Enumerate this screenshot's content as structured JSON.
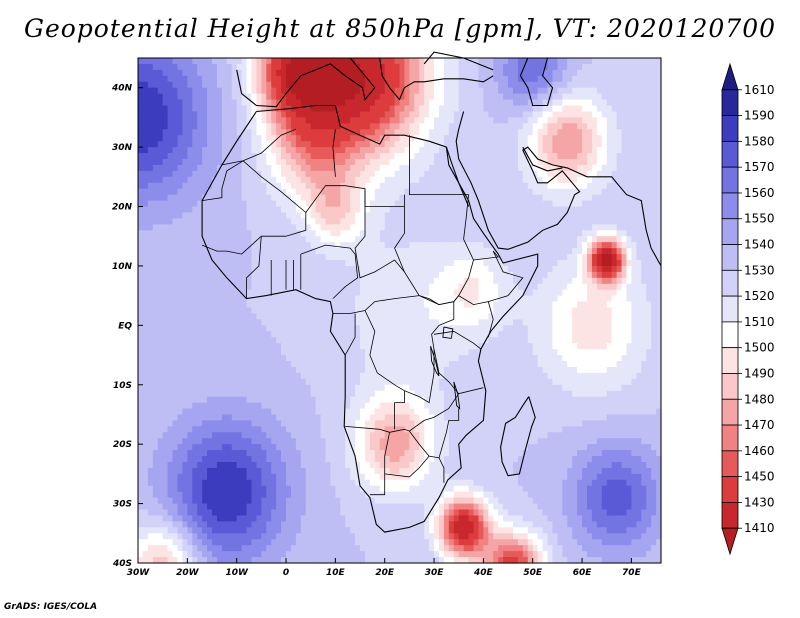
{
  "title": "Geopotential Height at 850hPa [gpm], VT: 2020120700",
  "credit": "GrADS: IGES/COLA",
  "map": {
    "variable": "Geopotential Height",
    "level": "850hPa",
    "units": "gpm",
    "valid_time": "2020120700",
    "lon_range": [
      -30,
      76
    ],
    "lat_range": [
      -40,
      45
    ],
    "lat_ticks": [
      {
        "value": 40,
        "label": "40N"
      },
      {
        "value": 30,
        "label": "30N"
      },
      {
        "value": 20,
        "label": "20N"
      },
      {
        "value": 10,
        "label": "10N"
      },
      {
        "value": 0,
        "label": "EQ"
      },
      {
        "value": -10,
        "label": "10S"
      },
      {
        "value": -20,
        "label": "20S"
      },
      {
        "value": -30,
        "label": "30S"
      },
      {
        "value": -40,
        "label": "40S"
      }
    ],
    "lon_ticks": [
      {
        "value": -30,
        "label": "30W"
      },
      {
        "value": -20,
        "label": "20W"
      },
      {
        "value": -10,
        "label": "10W"
      },
      {
        "value": 0,
        "label": "0"
      },
      {
        "value": 10,
        "label": "10E"
      },
      {
        "value": 20,
        "label": "20E"
      },
      {
        "value": 30,
        "label": "30E"
      },
      {
        "value": 40,
        "label": "40E"
      },
      {
        "value": 50,
        "label": "50E"
      },
      {
        "value": 60,
        "label": "60E"
      },
      {
        "value": 70,
        "label": "70E"
      }
    ],
    "background_value": 1530,
    "features": [
      {
        "name": "atlantic-high-north",
        "lon": -30,
        "lat": 35,
        "value": 1590,
        "radius": 14
      },
      {
        "name": "sahara-mediterranean-low",
        "lon": 15,
        "lat": 42,
        "value": 1415,
        "radius": 13
      },
      {
        "name": "mediterranean-low-west",
        "lon": 2,
        "lat": 43,
        "value": 1440,
        "radius": 8
      },
      {
        "name": "northwest-africa-trough",
        "lon": 5,
        "lat": 30,
        "value": 1485,
        "radius": 9
      },
      {
        "name": "arabia-low",
        "lon": 57,
        "lat": 31,
        "value": 1470,
        "radius": 8
      },
      {
        "name": "north-high",
        "lon": 50,
        "lat": 43,
        "value": 1570,
        "radius": 7
      },
      {
        "name": "sahel-heat-low",
        "lon": 10,
        "lat": 19,
        "value": 1495,
        "radius": 6
      },
      {
        "name": "central-africa-ridge",
        "lon": 25,
        "lat": 2,
        "value": 1512,
        "radius": 14
      },
      {
        "name": "east-africa-trough",
        "lon": 38,
        "lat": 6,
        "value": 1505,
        "radius": 7
      },
      {
        "name": "arabian-sea-low",
        "lon": 65,
        "lat": 11,
        "value": 1410,
        "radius": 3.5
      },
      {
        "name": "indian-ocean-trough",
        "lon": 62,
        "lat": 0,
        "value": 1495,
        "radius": 11
      },
      {
        "name": "kalahari-low",
        "lon": 22,
        "lat": -20,
        "value": 1475,
        "radius": 8
      },
      {
        "name": "southeast-africa-low",
        "lon": 36,
        "lat": -34,
        "value": 1420,
        "radius": 5
      },
      {
        "name": "south-indian-low",
        "lon": 46,
        "lat": -41,
        "value": 1440,
        "radius": 6
      },
      {
        "name": "south-atlantic-high",
        "lon": -12,
        "lat": -28,
        "value": 1590,
        "radius": 12
      },
      {
        "name": "south-indian-high",
        "lon": 67,
        "lat": -29,
        "value": 1575,
        "radius": 9
      },
      {
        "name": "southwest-atlantic-low",
        "lon": -25,
        "lat": -40,
        "value": 1480,
        "radius": 7
      }
    ],
    "colorbar": {
      "levels": [
        1410,
        1430,
        1450,
        1460,
        1470,
        1480,
        1490,
        1500,
        1510,
        1520,
        1530,
        1540,
        1550,
        1560,
        1570,
        1580,
        1590,
        1610
      ],
      "labels": [
        "1610",
        "1590",
        "1580",
        "1570",
        "1560",
        "1550",
        "1540",
        "1530",
        "1520",
        "1510",
        "1500",
        "1490",
        "1480",
        "1470",
        "1460",
        "1450",
        "1430",
        "1410"
      ],
      "colors": [
        "#b41e23",
        "#c8282d",
        "#dc3c3c",
        "#e65a5a",
        "#f08282",
        "#f5a5a5",
        "#fac8c8",
        "#fde4e4",
        "#ffffff",
        "#e6e6fa",
        "#d2d2f8",
        "#bebef5",
        "#a5a5f0",
        "#8c8ceb",
        "#7373e1",
        "#5a5ad7",
        "#3c3cbe",
        "#28289b",
        "#1e1e82"
      ]
    }
  }
}
